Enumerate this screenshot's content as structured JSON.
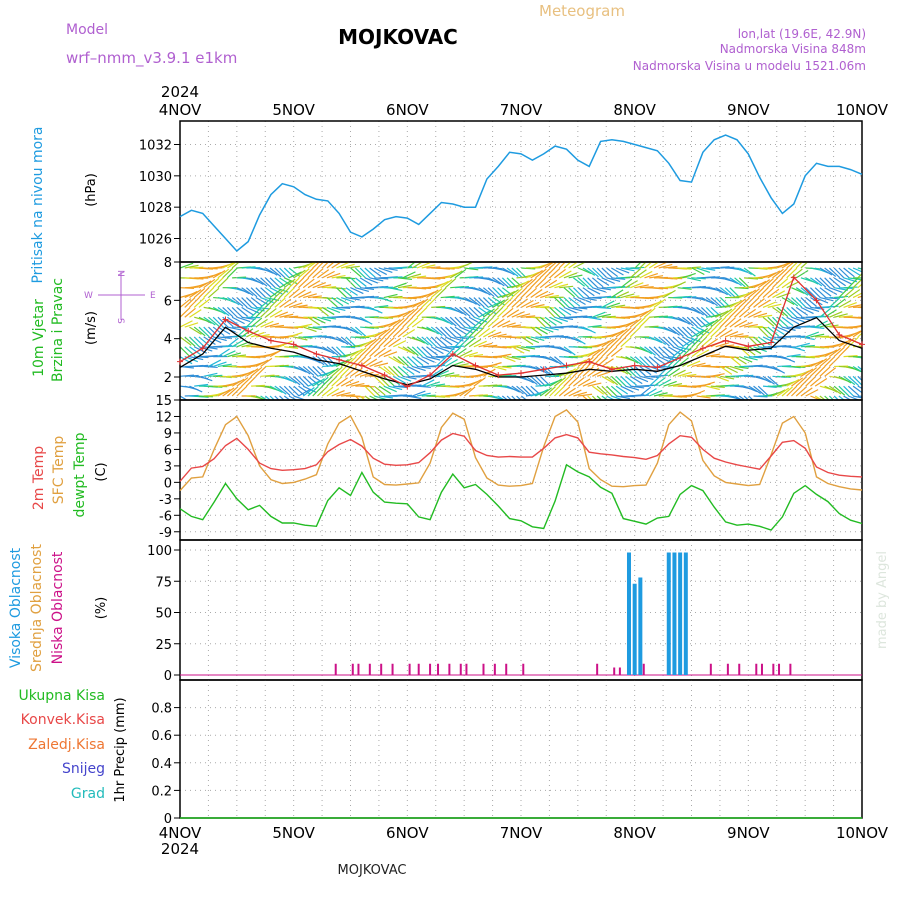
{
  "header": {
    "model_label": "Model",
    "model_name": "wrf–nmm_v3.9.1  e1km",
    "station": "MOJKOVAC",
    "subtitle": "Meteogram",
    "location": "lon,lat (19.6E, 42.9N)",
    "elevation": "Nadmorska Visina 848m",
    "model_elevation": "Nadmorska Visina u modelu 1521.06m",
    "watermark": "made by Angel",
    "footer_station": "MOJKOVAC"
  },
  "time_axis": {
    "year": "2024",
    "labels": [
      "4NOV",
      "5NOV",
      "6NOV",
      "7NOV",
      "8NOV",
      "9NOV",
      "10NOV"
    ],
    "day_range": [
      0,
      6
    ]
  },
  "colors": {
    "pressure": "#1e9be0",
    "wind_speed": "#000000",
    "wind_gust": "#e03030",
    "temp_2m": "#e84848",
    "temp_sfc": "#e0a040",
    "dewpoint": "#22bb22",
    "cloud_high": "#1e9be0",
    "cloud_mid": "#e0a040",
    "cloud_low": "#cc1188"
  },
  "panels": {
    "pressure": {
      "label": "Pritisak na nivou mora",
      "unit": "(hPa)",
      "ticks": [
        "1026",
        "1028",
        "1030",
        "1032"
      ],
      "ylim": [
        1024.5,
        1033.5
      ]
    },
    "wind": {
      "label_line1": "10m Vjetar",
      "label_line2": "Brzina i Pravac",
      "unit": "(m/s)",
      "compass_n": "N",
      "compass_w": "W",
      "compass_e": "E",
      "compass_s": "S",
      "ticks": [
        "2",
        "4",
        "6",
        "8"
      ],
      "ylim": [
        0.8,
        8
      ]
    },
    "temperature": {
      "label_2m": "2m Temp",
      "label_sfc": "SFC Temp",
      "label_dew": "dewpt Temp",
      "unit": "(C)",
      "ticks": [
        "-9",
        "-6",
        "-3",
        "0",
        "3",
        "6",
        "9",
        "12",
        "15"
      ],
      "ylim": [
        -10.5,
        15
      ]
    },
    "clouds": {
      "label_high": "Visoka Oblacnost",
      "label_mid": "Srednja Oblacnost",
      "label_low": "Niska Oblacnost",
      "unit": "(%)",
      "ticks": [
        "0",
        "25",
        "50",
        "75",
        "100"
      ],
      "ylim": [
        -4,
        108
      ]
    },
    "precip": {
      "label_total": "Ukupna Kisa",
      "label_conv": "Konvek.Kisa",
      "label_frozen": "Zaledj.Kisa",
      "label_snow": "Snijeg",
      "label_hail": "Grad",
      "unit": "1hr Precip (mm)",
      "ticks": [
        "0",
        "0.2",
        "0.4",
        "0.6",
        "0.8"
      ],
      "ylim": [
        0,
        1
      ]
    }
  },
  "chart_data": [
    {
      "type": "line",
      "name": "pressure",
      "x_unit": "days since 4NOV 00UTC",
      "x": [
        0,
        0.1,
        0.2,
        0.3,
        0.4,
        0.5,
        0.6,
        0.7,
        0.8,
        0.9,
        1,
        1.1,
        1.2,
        1.3,
        1.4,
        1.5,
        1.6,
        1.7,
        1.8,
        1.9,
        2,
        2.1,
        2.2,
        2.3,
        2.4,
        2.5,
        2.6,
        2.7,
        2.8,
        2.9,
        3,
        3.1,
        3.2,
        3.3,
        3.4,
        3.5,
        3.6,
        3.7,
        3.8,
        3.9,
        4,
        4.1,
        4.2,
        4.3,
        4.4,
        4.5,
        4.6,
        4.7,
        4.8,
        4.9,
        5,
        5.1,
        5.2,
        5.3,
        5.4,
        5.5,
        5.6,
        5.7,
        5.8,
        5.9,
        6
      ],
      "values": [
        1027.4,
        1027.8,
        1027.6,
        1026.8,
        1026.0,
        1025.2,
        1025.8,
        1027.5,
        1028.8,
        1029.5,
        1029.3,
        1028.8,
        1028.5,
        1028.4,
        1027.6,
        1026.4,
        1026.1,
        1026.6,
        1027.2,
        1027.4,
        1027.3,
        1026.9,
        1027.6,
        1028.3,
        1028.2,
        1028.0,
        1028.0,
        1029.8,
        1030.6,
        1031.5,
        1031.4,
        1031.0,
        1031.4,
        1031.9,
        1031.7,
        1031.0,
        1030.6,
        1032.2,
        1032.3,
        1032.2,
        1032.0,
        1031.8,
        1031.6,
        1030.8,
        1029.7,
        1029.6,
        1031.5,
        1032.3,
        1032.6,
        1032.3,
        1031.4,
        1029.9,
        1028.6,
        1027.6,
        1028.2,
        1030.0,
        1030.8,
        1030.6,
        1030.6,
        1030.4,
        1030.1
      ],
      "ylim": [
        1024.5,
        1033.5
      ]
    },
    {
      "type": "line",
      "name": "wind",
      "x_unit": "days since 4NOV 00UTC",
      "x": [
        0,
        0.2,
        0.4,
        0.6,
        0.8,
        1,
        1.2,
        1.4,
        1.6,
        1.8,
        2,
        2.2,
        2.4,
        2.6,
        2.8,
        3,
        3.2,
        3.4,
        3.6,
        3.8,
        4,
        4.2,
        4.4,
        4.6,
        4.8,
        5,
        5.2,
        5.4,
        5.6,
        5.8,
        6
      ],
      "speed": [
        2.5,
        3.2,
        4.6,
        3.8,
        3.5,
        3.3,
        2.9,
        2.7,
        2.3,
        1.9,
        1.6,
        1.9,
        2.6,
        2.4,
        2.0,
        2.0,
        2.1,
        2.2,
        2.4,
        2.3,
        2.4,
        2.3,
        2.6,
        3.1,
        3.6,
        3.4,
        3.5,
        4.6,
        5.1,
        3.9,
        3.5
      ],
      "gust": [
        2.8,
        3.5,
        5.0,
        4.4,
        3.9,
        3.7,
        3.2,
        2.9,
        2.6,
        2.1,
        1.5,
        2.1,
        3.2,
        2.6,
        2.1,
        2.2,
        2.4,
        2.6,
        2.8,
        2.4,
        2.6,
        2.5,
        3.0,
        3.5,
        3.9,
        3.6,
        3.8,
        7.2,
        6.0,
        4.2,
        3.7
      ],
      "ylim": [
        0.8,
        8
      ]
    },
    {
      "type": "line",
      "name": "temperature",
      "x_unit": "days since 4NOV 00UTC",
      "x": [
        0,
        0.1,
        0.2,
        0.3,
        0.4,
        0.5,
        0.6,
        0.7,
        0.8,
        0.9,
        1,
        1.1,
        1.2,
        1.3,
        1.4,
        1.5,
        1.6,
        1.7,
        1.8,
        1.9,
        2,
        2.1,
        2.2,
        2.3,
        2.4,
        2.5,
        2.6,
        2.7,
        2.8,
        2.9,
        3,
        3.1,
        3.2,
        3.3,
        3.4,
        3.5,
        3.6,
        3.7,
        3.8,
        3.9,
        4,
        4.1,
        4.2,
        4.3,
        4.4,
        4.5,
        4.6,
        4.7,
        4.8,
        4.9,
        5,
        5.1,
        5.2,
        5.3,
        5.4,
        5.5,
        5.6,
        5.7,
        5.8,
        5.9,
        6
      ],
      "t2m": [
        0.2,
        2.6,
        2.9,
        4.3,
        6.7,
        8.0,
        6.0,
        3.5,
        2.5,
        2.2,
        2.3,
        2.5,
        3.2,
        5.6,
        6.9,
        7.8,
        6.6,
        4.4,
        3.3,
        3.1,
        3.2,
        3.6,
        5.4,
        7.7,
        8.9,
        8.4,
        5.8,
        4.9,
        4.6,
        4.7,
        4.6,
        4.6,
        6.2,
        8.1,
        8.7,
        8.1,
        5.5,
        5.2,
        5.0,
        4.7,
        4.5,
        4.2,
        4.9,
        7.0,
        8.5,
        8.2,
        6.0,
        4.4,
        3.7,
        3.2,
        2.8,
        2.4,
        4.8,
        7.3,
        7.6,
        6.2,
        2.8,
        1.8,
        1.3,
        1.1,
        1.0
      ],
      "tsfc": [
        -1.5,
        0.8,
        1.0,
        6.0,
        10.5,
        12.0,
        8.5,
        3.0,
        0.5,
        -0.2,
        0.0,
        0.6,
        1.4,
        7.0,
        10.8,
        12.1,
        8.2,
        1.0,
        -0.4,
        -0.5,
        -0.3,
        -0.1,
        3.5,
        10.0,
        12.6,
        11.5,
        4.5,
        0.8,
        -0.5,
        -0.7,
        -0.6,
        -0.2,
        6.5,
        12.0,
        13.2,
        11.0,
        2.5,
        0.5,
        -0.7,
        -0.8,
        -0.6,
        -0.5,
        3.5,
        10.5,
        12.8,
        11.2,
        4.0,
        1.2,
        0.0,
        -0.3,
        -0.6,
        -0.4,
        5.0,
        10.8,
        12.0,
        9.0,
        1.0,
        -0.2,
        -0.8,
        -1.2,
        -1.4
      ],
      "dewpt": [
        -4.8,
        -6.2,
        -6.8,
        -3.6,
        -0.2,
        -3.0,
        -5.0,
        -4.2,
        -6.2,
        -7.4,
        -7.4,
        -7.8,
        -8.0,
        -3.3,
        -1.0,
        -2.4,
        1.8,
        -1.8,
        -3.6,
        -3.8,
        -3.9,
        -6.3,
        -6.8,
        -1.8,
        1.5,
        -1.0,
        -0.4,
        -2.2,
        -4.3,
        -6.6,
        -7.0,
        -8.1,
        -8.4,
        -3.4,
        3.2,
        1.9,
        1.0,
        -0.9,
        -2.0,
        -6.6,
        -7.1,
        -7.6,
        -6.5,
        -6.2,
        -2.2,
        -0.6,
        -1.5,
        -4.5,
        -7.2,
        -7.8,
        -7.6,
        -8.0,
        -8.7,
        -6.3,
        -2.0,
        -0.6,
        -2.2,
        -3.5,
        -5.7,
        -6.9,
        -7.5
      ],
      "ylim": [
        -10.5,
        15
      ]
    },
    {
      "type": "bar",
      "name": "clouds",
      "x_unit": "days since 4NOV 00UTC",
      "high": {
        "x": [
          3.95,
          4.0,
          4.05,
          4.3,
          4.35,
          4.4,
          4.45
        ],
        "values": [
          98,
          73,
          78,
          98,
          98,
          98,
          98
        ]
      },
      "low": {
        "x": [
          1.37,
          1.52,
          1.57,
          1.67,
          1.77,
          1.87,
          2.02,
          2.1,
          2.2,
          2.27,
          2.37,
          2.47,
          2.52,
          2.67,
          2.77,
          2.87,
          3.02,
          3.67,
          3.82,
          3.87,
          4.08,
          4.67,
          4.82,
          4.92,
          5.07,
          5.12,
          5.22,
          5.27,
          5.37
        ],
        "values": [
          9,
          9,
          9,
          9,
          9,
          9,
          9,
          9,
          9,
          9,
          9,
          9,
          9,
          9,
          9,
          9,
          9,
          9,
          6,
          6,
          9,
          9,
          9,
          9,
          9,
          9,
          9,
          9,
          9
        ]
      },
      "ylim": [
        -4,
        108
      ]
    },
    {
      "type": "line",
      "name": "precip",
      "x_unit": "days since 4NOV 00UTC",
      "total": [
        0,
        0,
        0,
        0,
        0,
        0,
        0
      ],
      "ylim": [
        0,
        1
      ]
    }
  ]
}
